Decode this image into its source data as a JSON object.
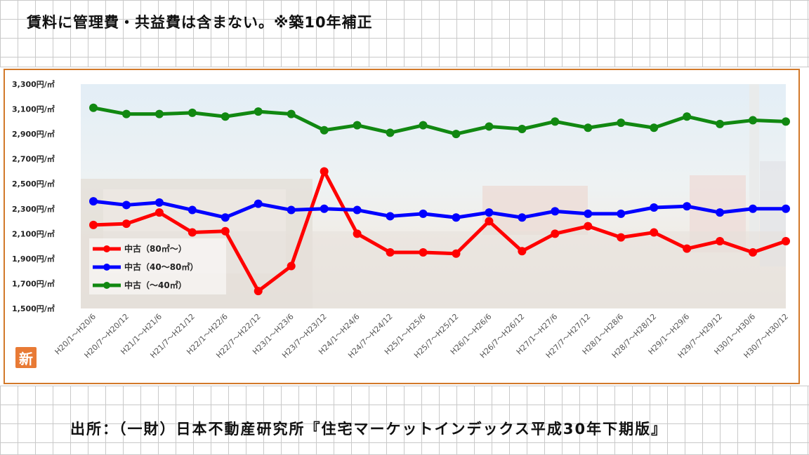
{
  "header": {
    "note": "賃料に管理費・共益費は含まない。※築10年補正"
  },
  "footer": {
    "source": "出所：（一財）日本不動産研究所『住宅マーケットインデックス平成30年下期版』"
  },
  "badge": {
    "label": "新"
  },
  "chart_data": {
    "type": "line",
    "title": "",
    "xlabel": "",
    "ylabel": "",
    "ylim": [
      1500,
      3300
    ],
    "yticks": [
      1500,
      1700,
      1900,
      2100,
      2300,
      2500,
      2700,
      2900,
      3100,
      3300
    ],
    "ytick_labels": [
      "1,500円/㎡",
      "1,700円/㎡",
      "1,900円/㎡",
      "2,100円/㎡",
      "2,300円/㎡",
      "2,500円/㎡",
      "2,700円/㎡",
      "2,900円/㎡",
      "3,100円/㎡",
      "3,300円/㎡"
    ],
    "categories": [
      "H20/1～H20/6",
      "H20/7～H20/12",
      "H21/1～H21/6",
      "H21/7～H21/12",
      "H22/1～H22/6",
      "H22/7～H22/12",
      "H23/1～H23/6",
      "H23/7～H23/12",
      "H24/1～H24/6",
      "H24/7～H24/12",
      "H25/1～H25/6",
      "H25/7～H25/12",
      "H26/1～H26/6",
      "H26/7～H26/12",
      "H27/1～H27/6",
      "H27/7～H27/12",
      "H28/1～H28/6",
      "H28/7～H28/12",
      "H29/1～H29/6",
      "H29/7～H29/12",
      "H30/1～H30/6",
      "H30/7～H30/12"
    ],
    "grid": false,
    "legend_position": "bottom-left",
    "series": [
      {
        "name": "中古（80㎡～）",
        "color": "#ff0000",
        "values": [
          2170,
          2180,
          2270,
          2110,
          2120,
          1640,
          1840,
          2600,
          2100,
          1950,
          1950,
          1940,
          2200,
          1960,
          2100,
          2160,
          2070,
          2110,
          1980,
          2040,
          1950,
          2040
        ]
      },
      {
        "name": "中古（40～80㎡）",
        "color": "#0000ff",
        "values": [
          2360,
          2330,
          2350,
          2290,
          2230,
          2340,
          2290,
          2300,
          2290,
          2240,
          2260,
          2230,
          2270,
          2230,
          2280,
          2260,
          2260,
          2310,
          2320,
          2270,
          2300,
          2300
        ]
      },
      {
        "name": "中古（～40㎡）",
        "color": "#118811",
        "values": [
          3110,
          3060,
          3060,
          3070,
          3040,
          3080,
          3060,
          2930,
          2970,
          2910,
          2970,
          2900,
          2960,
          2940,
          3000,
          2950,
          2990,
          2950,
          3040,
          2980,
          3010,
          3000
        ]
      }
    ]
  }
}
